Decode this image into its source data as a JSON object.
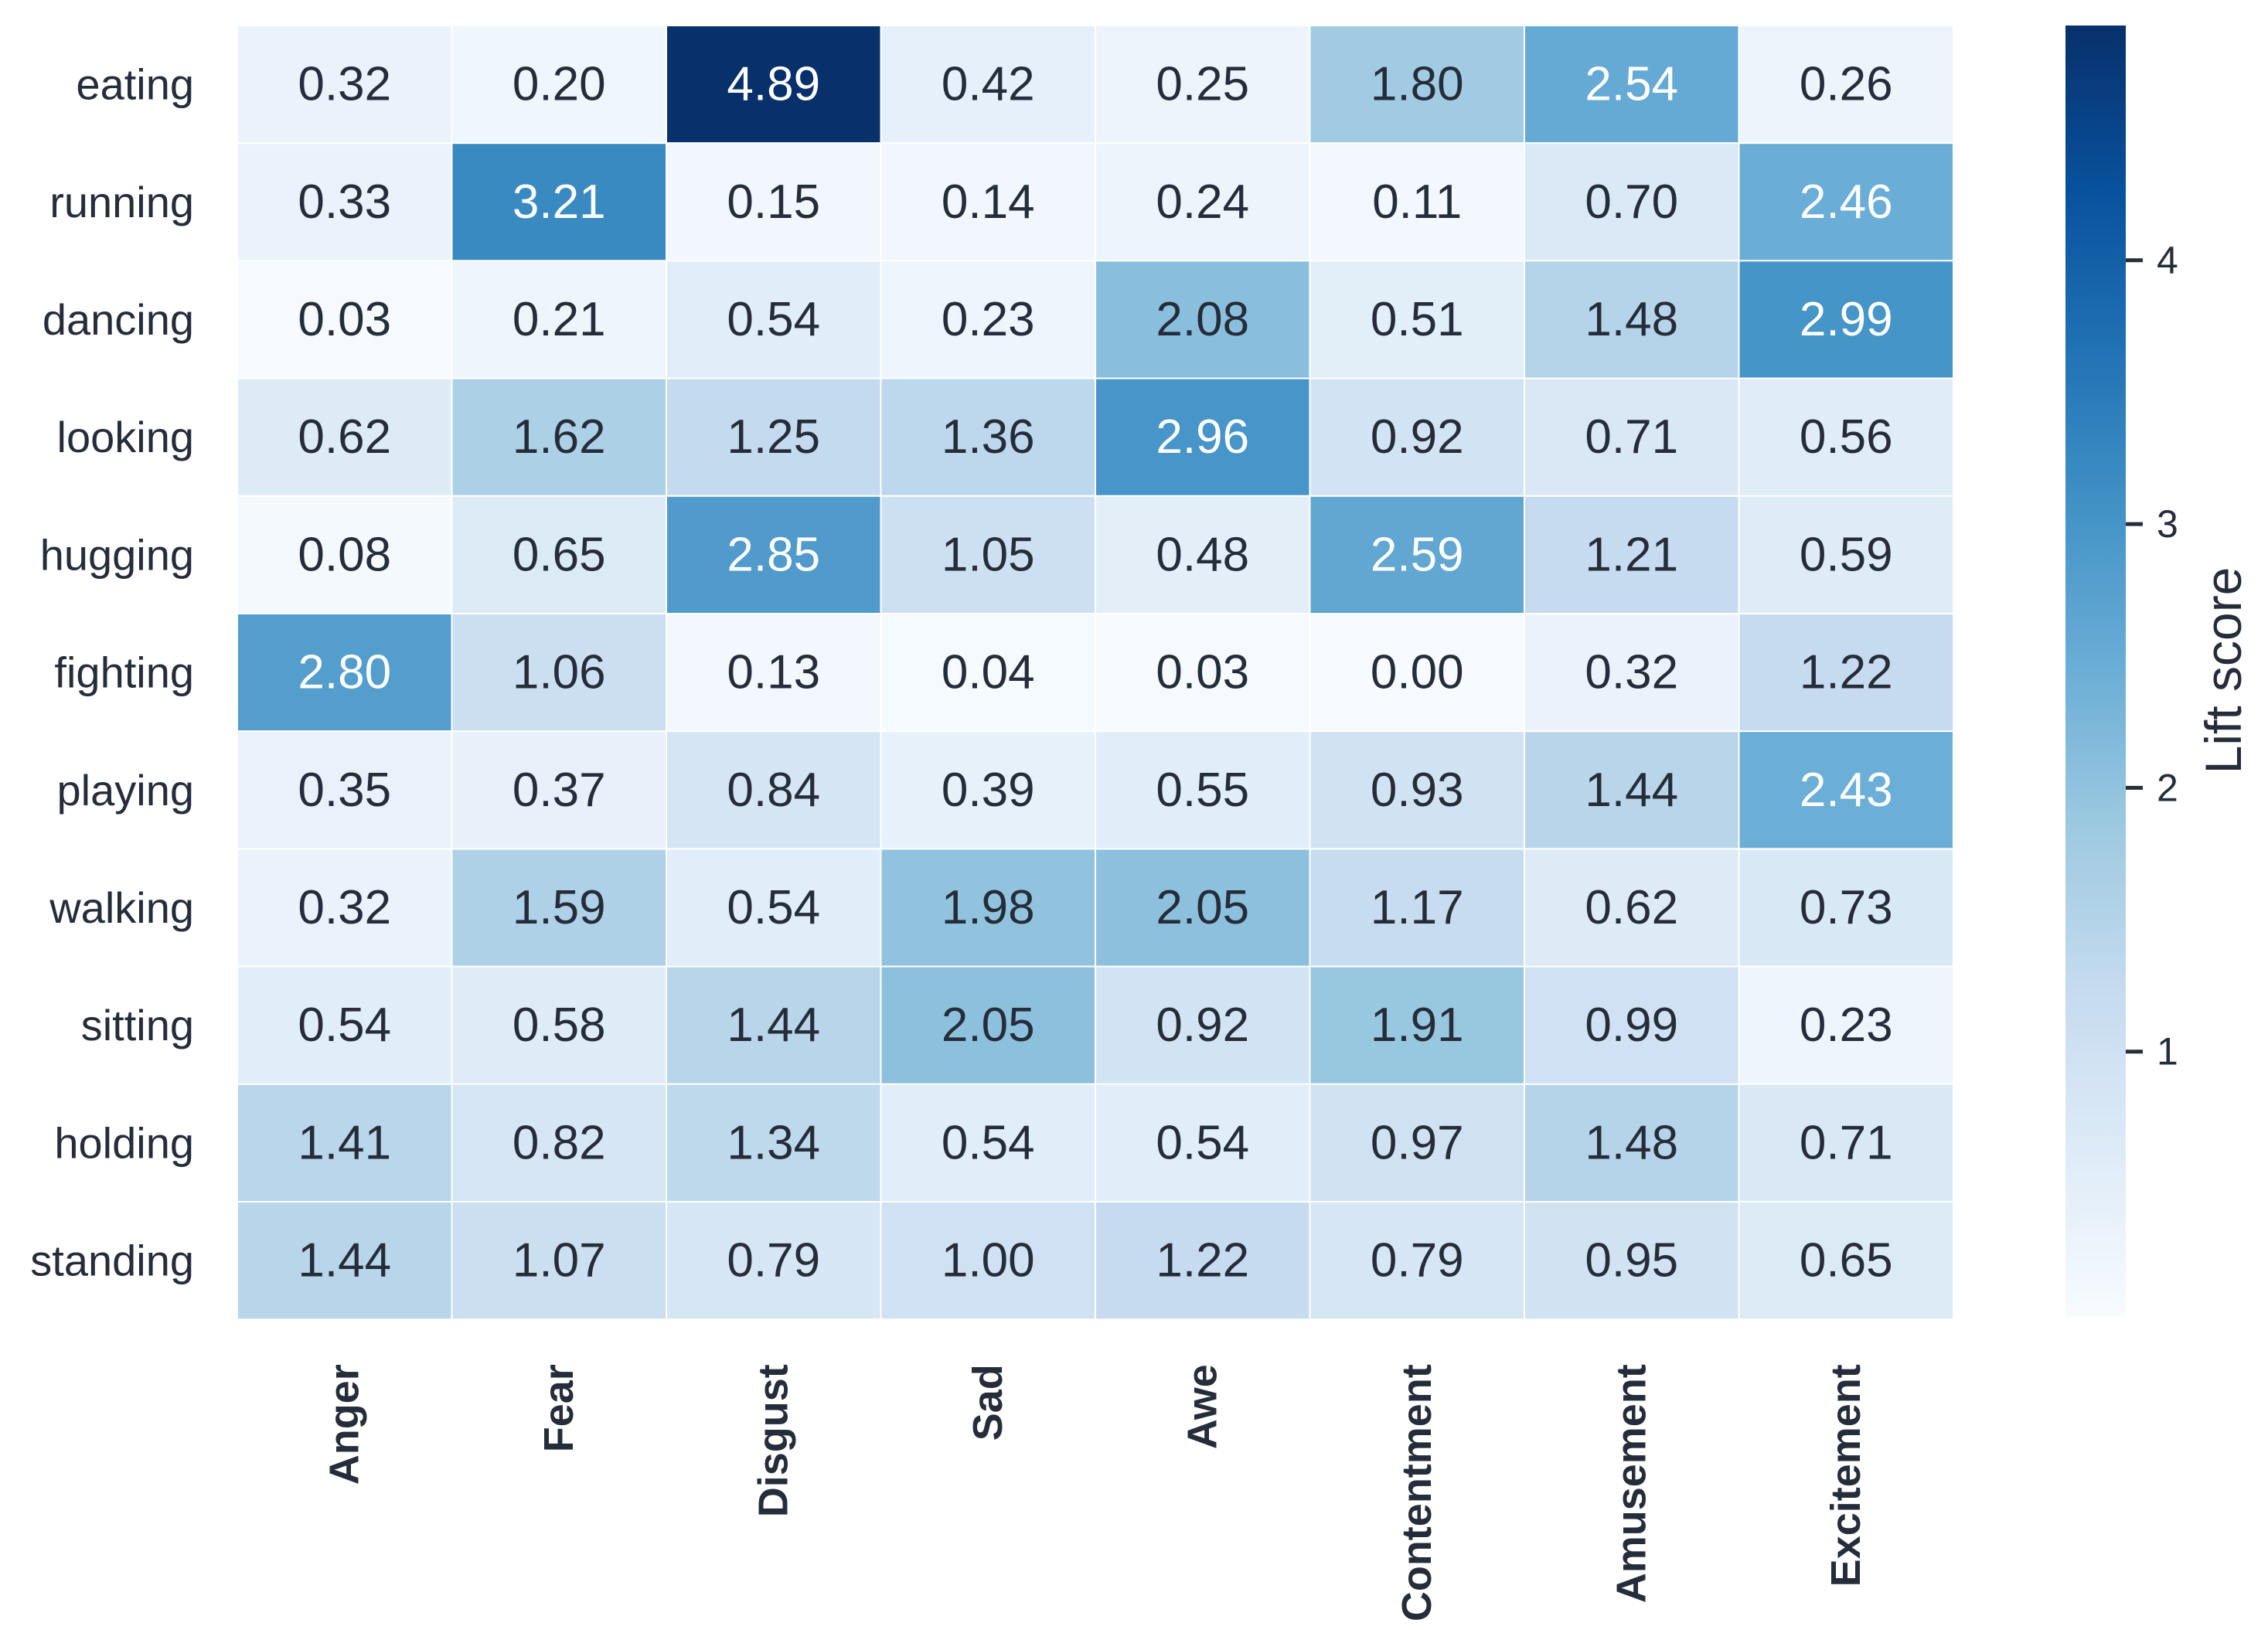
{
  "chart_data": {
    "type": "heatmap",
    "rows": [
      "eating",
      "running",
      "dancing",
      "looking",
      "hugging",
      "fighting",
      "playing",
      "walking",
      "sitting",
      "holding",
      "standing"
    ],
    "columns": [
      "Anger",
      "Fear",
      "Disgust",
      "Sad",
      "Awe",
      "Contentment",
      "Amusement",
      "Excitement"
    ],
    "values": [
      [
        0.32,
        0.2,
        4.89,
        0.42,
        0.25,
        1.8,
        2.54,
        0.26
      ],
      [
        0.33,
        3.21,
        0.15,
        0.14,
        0.24,
        0.11,
        0.7,
        2.46
      ],
      [
        0.03,
        0.21,
        0.54,
        0.23,
        2.08,
        0.51,
        1.48,
        2.99
      ],
      [
        0.62,
        1.62,
        1.25,
        1.36,
        2.96,
        0.92,
        0.71,
        0.56
      ],
      [
        0.08,
        0.65,
        2.85,
        1.05,
        0.48,
        2.59,
        1.21,
        0.59
      ],
      [
        2.8,
        1.06,
        0.13,
        0.04,
        0.03,
        0.0,
        0.32,
        1.22
      ],
      [
        0.35,
        0.37,
        0.84,
        0.39,
        0.55,
        0.93,
        1.44,
        2.43
      ],
      [
        0.32,
        1.59,
        0.54,
        1.98,
        2.05,
        1.17,
        0.62,
        0.73
      ],
      [
        0.54,
        0.58,
        1.44,
        2.05,
        0.92,
        1.91,
        0.99,
        0.23
      ],
      [
        1.41,
        0.82,
        1.34,
        0.54,
        0.54,
        0.97,
        1.48,
        0.71
      ],
      [
        1.44,
        1.07,
        0.79,
        1.0,
        1.22,
        0.79,
        0.95,
        0.65
      ]
    ],
    "value_format": "0.00",
    "colormap": "Blues",
    "colorbar": {
      "label": "Lift score",
      "range": [
        0.0,
        4.89
      ],
      "ticks": [
        1,
        2,
        3,
        4
      ]
    },
    "grid": false,
    "title": "",
    "xlabel": "",
    "ylabel": ""
  }
}
